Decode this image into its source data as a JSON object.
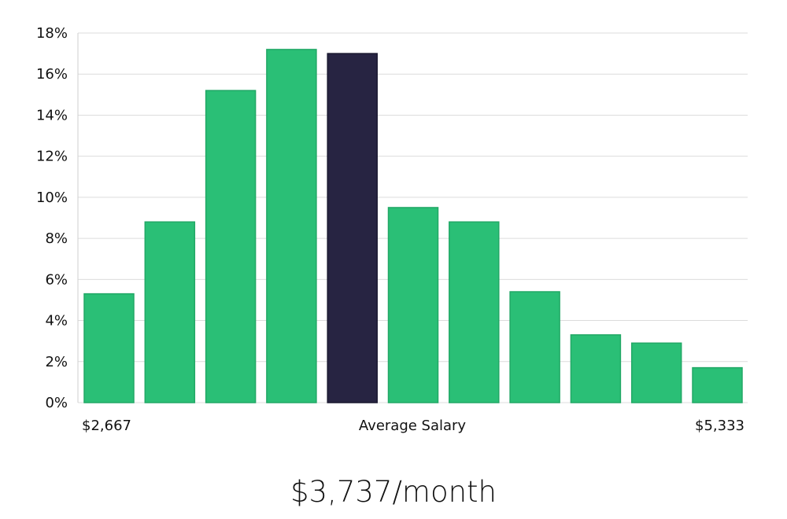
{
  "chart_data": {
    "type": "bar",
    "categories": [
      "",
      "",
      "",
      "",
      "",
      "",
      "",
      "",
      "",
      "",
      ""
    ],
    "values": [
      5.3,
      8.8,
      15.2,
      17.2,
      17.0,
      9.5,
      8.8,
      5.4,
      3.3,
      2.9,
      1.7
    ],
    "highlight_index": 4,
    "ylim": [
      0,
      18
    ],
    "yticks": [
      "0%",
      "2%",
      "4%",
      "6%",
      "8%",
      "10%",
      "12%",
      "14%",
      "16%",
      "18%"
    ],
    "ytick_values": [
      0,
      2,
      4,
      6,
      8,
      10,
      12,
      14,
      16,
      18
    ],
    "grid": true,
    "xlabel_left": "$2,667",
    "xlabel_center": "Average Salary",
    "xlabel_right": "$5,333",
    "colors": {
      "bar": "#2abf76",
      "bar_border": "#22a866",
      "highlight": "#272442"
    }
  },
  "headline": "$3,737/month"
}
